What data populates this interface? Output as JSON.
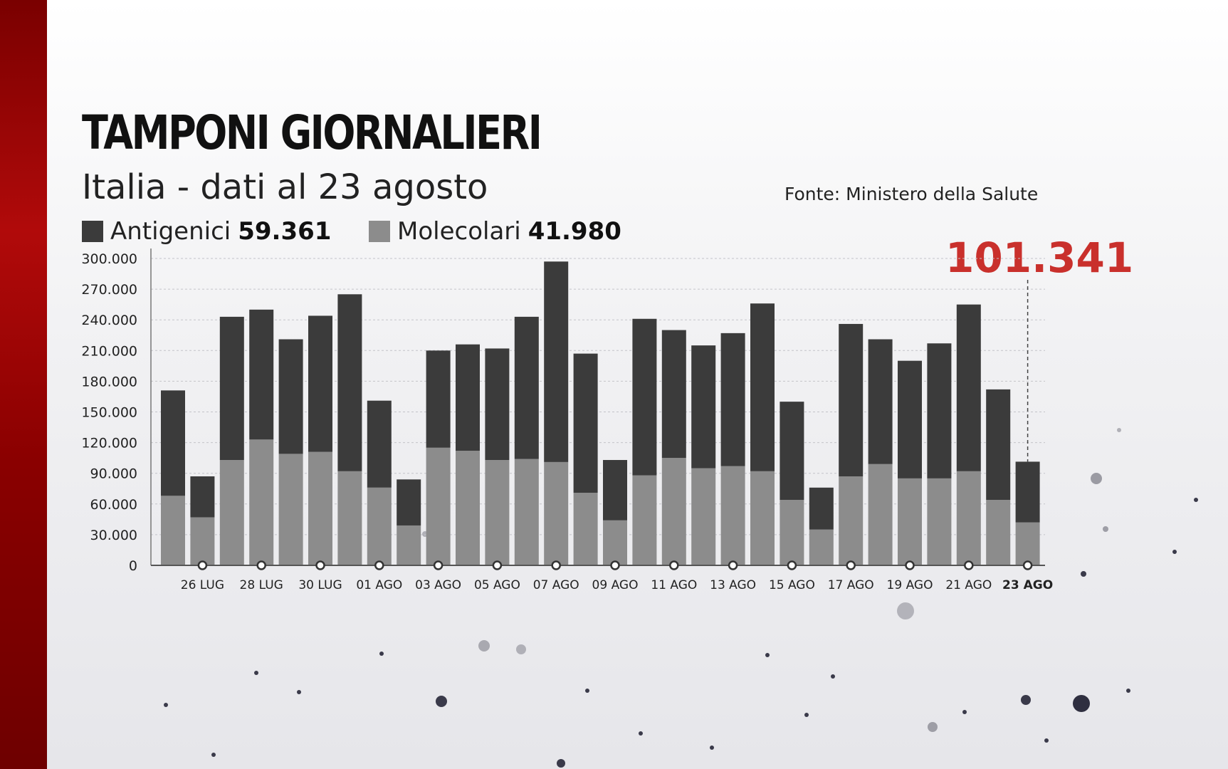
{
  "title": "TAMPONI GIORNALIERI",
  "subtitle": "Italia - dati al 23 agosto",
  "source": "Fonte: Ministero della Salute",
  "legend": [
    {
      "label": "Antigenici",
      "value": "59.361",
      "color": "#3b3b3b"
    },
    {
      "label": "Molecolari",
      "value": "41.980",
      "color": "#8c8c8c"
    }
  ],
  "highlight_total": "101.341",
  "colors": {
    "accent": "#c9302c",
    "antigenici": "#3b3b3b",
    "molecolari": "#8c8c8c"
  },
  "chart_data": {
    "type": "bar",
    "stacked": true,
    "ylim": [
      0,
      300000
    ],
    "yticks": [
      "0",
      "30.000",
      "60.000",
      "90.000",
      "120.000",
      "150.000",
      "180.000",
      "210.000",
      "240.000",
      "270.000",
      "300.000"
    ],
    "x_tick_labels": [
      "26 LUG",
      "28 LUG",
      "30 LUG",
      "01 AGO",
      "03 AGO",
      "05 AGO",
      "07 AGO",
      "09 AGO",
      "11 AGO",
      "13 AGO",
      "15 AGO",
      "17 AGO",
      "19 AGO",
      "21 AGO",
      "23 AGO"
    ],
    "series": [
      {
        "name": "Molecolari",
        "values": [
          68000,
          47000,
          103000,
          123000,
          109000,
          111000,
          92000,
          76000,
          39000,
          115000,
          112000,
          103000,
          104000,
          101000,
          71000,
          44000,
          88000,
          105000,
          95000,
          97000,
          92000,
          64000,
          35000,
          87000,
          99000,
          85000,
          85000,
          92000,
          64000,
          41980
        ]
      },
      {
        "name": "Antigenici",
        "values": [
          103000,
          40000,
          140000,
          127000,
          112000,
          133000,
          173000,
          85000,
          45000,
          95000,
          104000,
          109000,
          139000,
          196000,
          136000,
          59000,
          153000,
          125000,
          120000,
          130000,
          164000,
          96000,
          41000,
          149000,
          122000,
          115000,
          132000,
          163000,
          108000,
          59361
        ]
      }
    ],
    "grid": true
  }
}
